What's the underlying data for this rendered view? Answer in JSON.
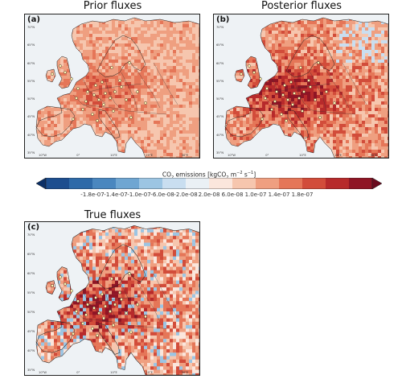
{
  "panels": [
    {
      "tag": "(a)",
      "title": "Prior fluxes"
    },
    {
      "tag": "(b)",
      "title": "Posterior fluxes"
    },
    {
      "tag": "(c)",
      "title": "True fluxes"
    }
  ],
  "map_axes": {
    "lat_ticks": [
      "70°N",
      "65°N",
      "60°N",
      "55°N",
      "50°N",
      "45°N",
      "40°N",
      "35°N"
    ],
    "lon_ticks": [
      "10°W",
      "0°",
      "10°E",
      "20°E",
      "30°E"
    ]
  },
  "colorbar": {
    "title_prefix": "CO",
    "title_sub": "2",
    "title_mid": " emissions [kgCO",
    "title_sub2": "2",
    "title_unit": " m",
    "title_sup": "−2",
    "title_s": " s",
    "title_sup2": "−1",
    "title_end": "]",
    "labels": [
      "-1.8e-07",
      "-1.4e-07",
      "-1.0e-07",
      "-6.0e-08",
      "-2.0e-08",
      "2.0e-08",
      "6.0e-08",
      "1.0e-07",
      "1.4e-07",
      "1.8e-07"
    ],
    "colors": [
      "#1d4e8f",
      "#2e6aa8",
      "#4a87bf",
      "#6fa6d2",
      "#9cc5e3",
      "#c9def0",
      "#eaf0f5",
      "#fbe6dc",
      "#f6c6ae",
      "#ef9f80",
      "#e57658",
      "#d24c3a",
      "#b72a2b",
      "#8f1525"
    ],
    "extend_low": "#0b2f66",
    "extend_high": "#6a0b1e"
  }
}
